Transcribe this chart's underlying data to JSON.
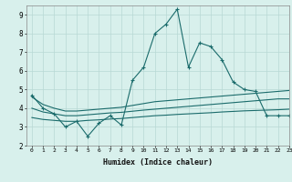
{
  "xlabel": "Humidex (Indice chaleur)",
  "x": [
    0,
    1,
    2,
    3,
    4,
    5,
    6,
    7,
    8,
    9,
    10,
    11,
    12,
    13,
    14,
    15,
    16,
    17,
    18,
    19,
    20,
    21,
    22,
    23
  ],
  "line1": [
    4.7,
    4.0,
    3.7,
    3.0,
    3.3,
    2.5,
    3.2,
    3.6,
    3.1,
    5.5,
    6.2,
    8.0,
    8.5,
    9.3,
    6.2,
    7.5,
    7.3,
    6.6,
    5.4,
    5.0,
    4.9,
    3.6,
    3.6,
    3.6
  ],
  "line2": [
    4.6,
    4.2,
    4.0,
    3.85,
    3.85,
    3.9,
    3.95,
    4.0,
    4.05,
    4.15,
    4.25,
    4.35,
    4.4,
    4.45,
    4.5,
    4.55,
    4.6,
    4.65,
    4.7,
    4.75,
    4.8,
    4.85,
    4.9,
    4.95
  ],
  "line3": [
    4.0,
    3.8,
    3.7,
    3.6,
    3.6,
    3.65,
    3.7,
    3.75,
    3.78,
    3.84,
    3.9,
    3.95,
    4.0,
    4.05,
    4.1,
    4.15,
    4.2,
    4.25,
    4.3,
    4.35,
    4.4,
    4.45,
    4.5,
    4.5
  ],
  "line4": [
    3.5,
    3.4,
    3.35,
    3.3,
    3.3,
    3.35,
    3.38,
    3.42,
    3.45,
    3.5,
    3.55,
    3.6,
    3.63,
    3.67,
    3.7,
    3.73,
    3.76,
    3.8,
    3.83,
    3.86,
    3.88,
    3.9,
    3.92,
    3.95
  ],
  "color": "#1a6b6b",
  "bg_color": "#d8f0ec",
  "grid_color": "#b8d8d4",
  "ylim": [
    2,
    9.5
  ],
  "xlim": [
    -0.5,
    23
  ],
  "yticks": [
    2,
    3,
    4,
    5,
    6,
    7,
    8,
    9
  ]
}
